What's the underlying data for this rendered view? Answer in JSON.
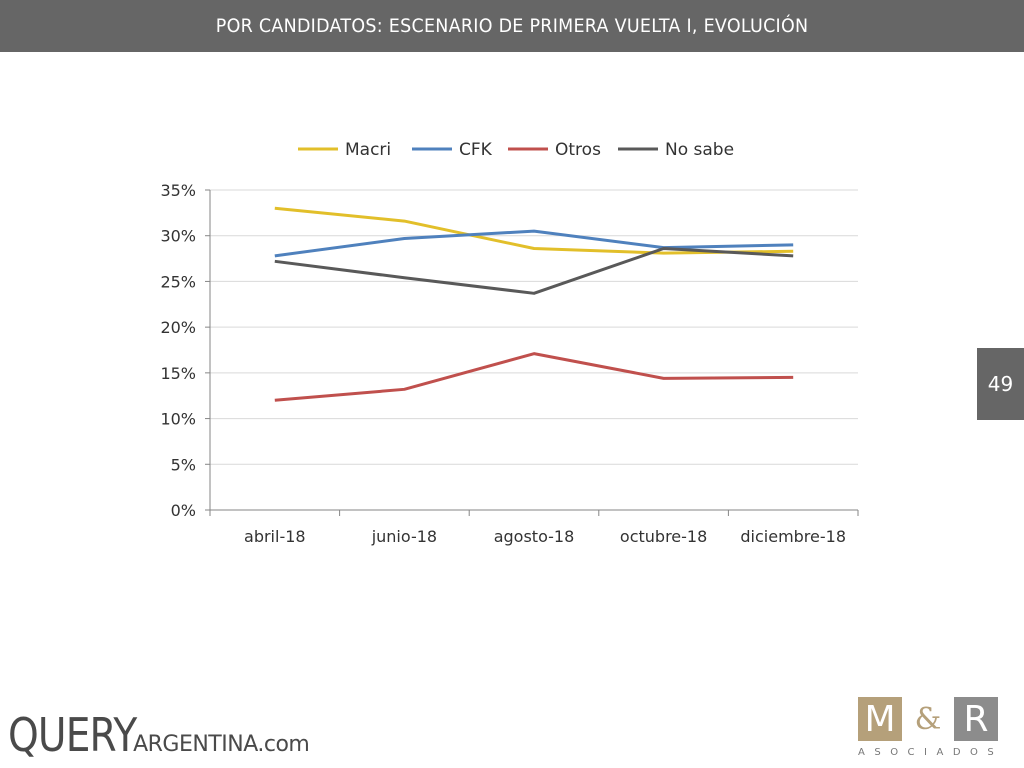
{
  "header": {
    "title": "POR CANDIDATOS: ESCENARIO DE PRIMERA VUELTA I, EVOLUCIÓN"
  },
  "page_number": "49",
  "chart_data": {
    "type": "line",
    "categories": [
      "abril-18",
      "junio-18",
      "agosto-18",
      "octubre-18",
      "diciembre-18"
    ],
    "series": [
      {
        "name": "Macri",
        "color": "#E2BF2A",
        "values": [
          33.0,
          31.6,
          28.6,
          28.1,
          28.3
        ]
      },
      {
        "name": "CFK",
        "color": "#4F81BD",
        "values": [
          27.8,
          29.7,
          30.5,
          28.7,
          29.0
        ]
      },
      {
        "name": "Otros",
        "color": "#C0504D",
        "values": [
          12.0,
          13.2,
          17.1,
          14.4,
          14.5
        ]
      },
      {
        "name": "No sabe",
        "color": "#595959",
        "values": [
          27.2,
          25.4,
          23.7,
          28.6,
          27.8
        ]
      }
    ],
    "yticks": [
      "0%",
      "5%",
      "10%",
      "15%",
      "20%",
      "25%",
      "30%",
      "35%"
    ],
    "ylim": [
      0,
      35
    ],
    "ystep": 5,
    "grid": true,
    "legend_position": "top"
  },
  "logos": {
    "query_big": "QUERY",
    "query_small": "ARGENTINA.com",
    "mr_m": "M",
    "mr_amp": "&",
    "mr_r": "R",
    "mr_sub": "ASOCIADOS",
    "colors": {
      "mr_m_box": "#B5A07A",
      "mr_r_box": "#8C8C8C"
    }
  }
}
